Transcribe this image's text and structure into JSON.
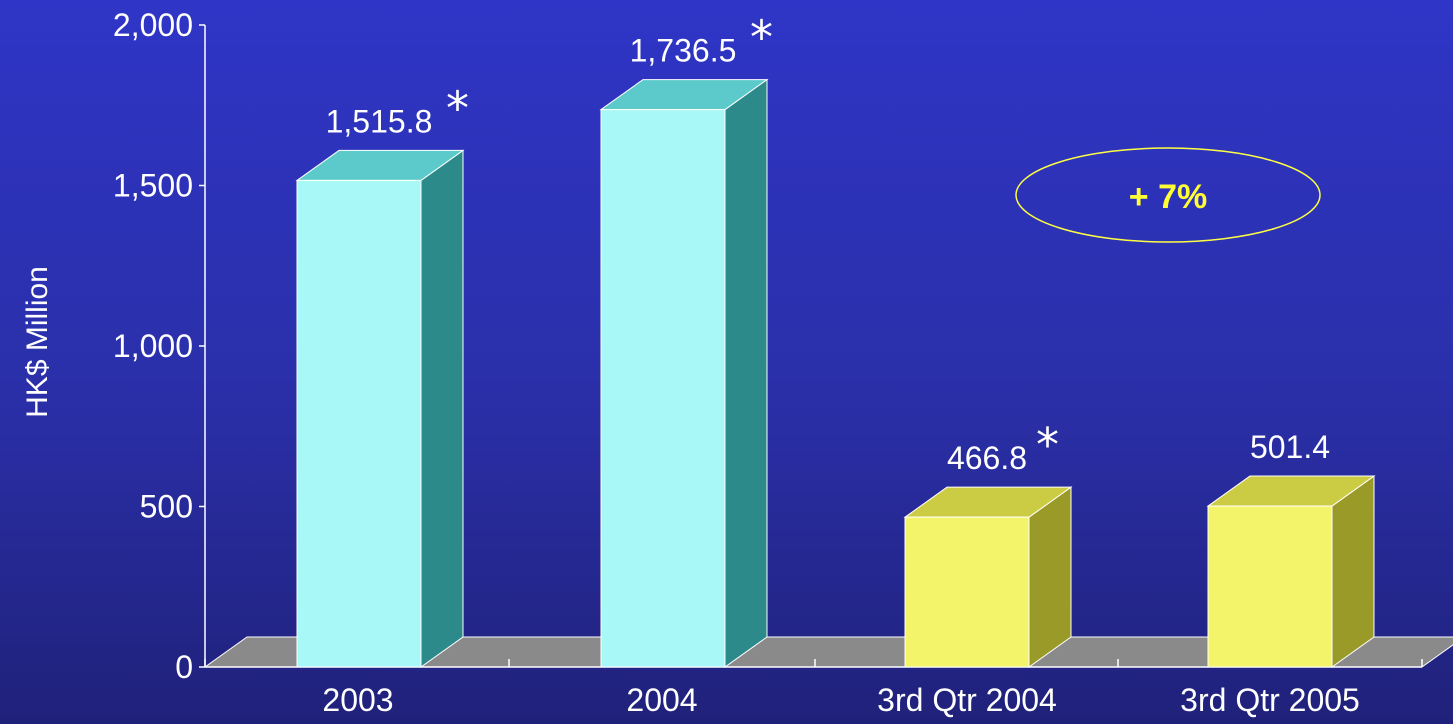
{
  "chart_data": {
    "type": "bar",
    "categories": [
      "2003",
      "2004",
      "3rd Qtr 2004",
      "3rd Qtr 2005"
    ],
    "values": [
      1515.8,
      1736.5,
      466.8,
      501.4
    ],
    "value_labels": [
      "1,515.8",
      "1,736.5",
      "466.8",
      "501.4"
    ],
    "asterisk_marked": [
      true,
      true,
      true,
      false
    ],
    "asterisk_symbol": "*",
    "title": "",
    "xlabel": "",
    "ylabel": "HK$ Million",
    "ylim": [
      0,
      2000
    ],
    "yticks": [
      0,
      500,
      1000,
      1500,
      2000
    ],
    "ytick_labels": [
      "0",
      "500",
      "1,000",
      "1,500",
      "2,000"
    ],
    "grid": false,
    "legend": "none",
    "annotation": "+ 7%",
    "colors": {
      "annual_bar_front": "#a8f8f8",
      "annual_bar_side": "#2d8a8a",
      "annual_bar_top": "#5ccaca",
      "quarter_bar_front": "#f4f46a",
      "quarter_bar_side": "#9a9a28",
      "quarter_bar_top": "#cccc44",
      "floor": "#8a8a8a",
      "annotation_text": "#ffff33",
      "annotation_ellipse": "#ffff44",
      "axis": "#ffffff"
    }
  }
}
